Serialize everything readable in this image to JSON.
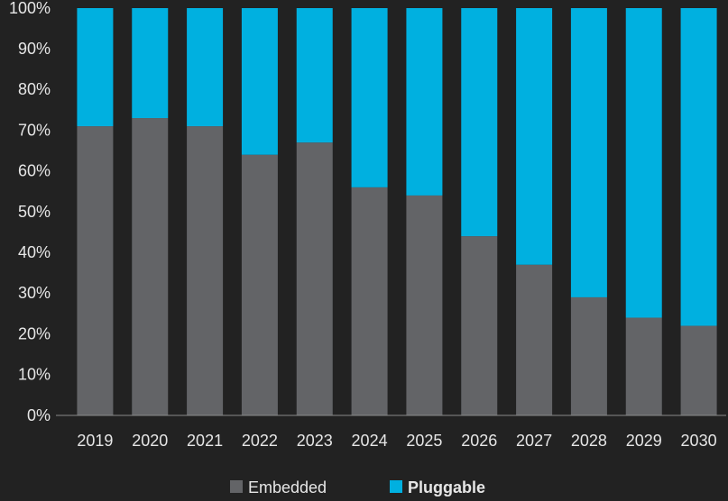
{
  "chart_data": {
    "type": "stacked_bar",
    "categories": [
      "2019",
      "2020",
      "2021",
      "2022",
      "2023",
      "2024",
      "2025",
      "2026",
      "2027",
      "2028",
      "2029",
      "2030"
    ],
    "series": [
      {
        "name": "Embedded",
        "color": "#636467",
        "values": [
          71,
          73,
          71,
          64,
          67,
          56,
          54,
          44,
          37,
          29,
          24,
          22
        ]
      },
      {
        "name": "Pluggable",
        "color": "#00b0e0",
        "values": [
          29,
          27,
          29,
          36,
          33,
          44,
          46,
          56,
          63,
          71,
          76,
          78
        ]
      }
    ],
    "ylim": [
      0,
      100
    ],
    "yticks": [
      {
        "value": 0,
        "label": "0%"
      },
      {
        "value": 10,
        "label": "10%"
      },
      {
        "value": 20,
        "label": "20%"
      },
      {
        "value": 30,
        "label": "30%"
      },
      {
        "value": 40,
        "label": "40%"
      },
      {
        "value": 50,
        "label": "50%"
      },
      {
        "value": 60,
        "label": "60%"
      },
      {
        "value": 70,
        "label": "70%"
      },
      {
        "value": 80,
        "label": "80%"
      },
      {
        "value": 90,
        "label": "90%"
      },
      {
        "value": 100,
        "label": "100%"
      }
    ],
    "legend": "bottom"
  }
}
